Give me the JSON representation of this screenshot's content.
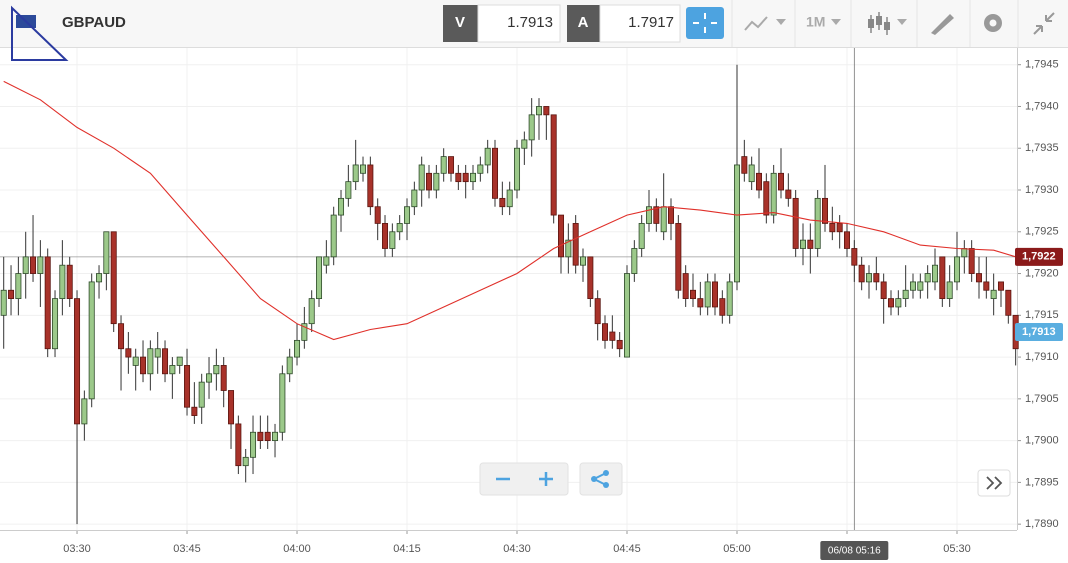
{
  "header": {
    "symbol": "GBPAUD",
    "bid_label": "V",
    "bid": "1.7913",
    "ask_label": "A",
    "ask": "1.7917",
    "timeframe": "1M"
  },
  "chart_data": {
    "type": "candlestick",
    "x": [
      "03:20",
      "03:21",
      "03:22",
      "03:23",
      "03:24",
      "03:25",
      "03:26",
      "03:27",
      "03:28",
      "03:29",
      "03:30",
      "03:31",
      "03:32",
      "03:33",
      "03:34",
      "03:35",
      "03:36",
      "03:37",
      "03:38",
      "03:39",
      "03:40",
      "03:41",
      "03:42",
      "03:43",
      "03:44",
      "03:45",
      "03:46",
      "03:47",
      "03:48",
      "03:49",
      "03:50",
      "03:51",
      "03:52",
      "03:53",
      "03:54",
      "03:55",
      "03:56",
      "03:57",
      "03:58",
      "03:59",
      "04:00",
      "04:01",
      "04:02",
      "04:03",
      "04:04",
      "04:05",
      "04:06",
      "04:07",
      "04:08",
      "04:09",
      "04:10",
      "04:11",
      "04:12",
      "04:13",
      "04:14",
      "04:15",
      "04:16",
      "04:17",
      "04:18",
      "04:19",
      "04:20",
      "04:21",
      "04:22",
      "04:23",
      "04:24",
      "04:25",
      "04:26",
      "04:27",
      "04:28",
      "04:29",
      "04:30",
      "04:31",
      "04:32",
      "04:33",
      "04:34",
      "04:35",
      "04:36",
      "04:37",
      "04:38",
      "04:39",
      "04:40",
      "04:41",
      "04:42",
      "04:43",
      "04:44",
      "04:45",
      "04:46",
      "04:47",
      "04:48",
      "04:49",
      "04:50",
      "04:51",
      "04:52",
      "04:53",
      "04:54",
      "04:55",
      "04:56",
      "04:57",
      "04:58",
      "04:59",
      "05:00",
      "05:01",
      "05:02",
      "05:03",
      "05:04",
      "05:05",
      "05:06",
      "05:07",
      "05:08",
      "05:09",
      "05:10",
      "05:11",
      "05:12",
      "05:13",
      "05:14",
      "05:15",
      "05:16",
      "05:17",
      "05:18",
      "05:19",
      "05:20",
      "05:21",
      "05:22",
      "05:23",
      "05:24",
      "05:25",
      "05:26",
      "05:27",
      "05:28",
      "05:29",
      "05:30",
      "05:31",
      "05:32",
      "05:33",
      "05:34",
      "05:35",
      "05:36",
      "05:37",
      "05:38"
    ],
    "ohlc": [
      [
        1.7915,
        1.7922,
        1.7911,
        1.7918
      ],
      [
        1.7918,
        1.7921,
        1.7915,
        1.7917
      ],
      [
        1.7917,
        1.7922,
        1.7915,
        1.792
      ],
      [
        1.792,
        1.7925,
        1.7917,
        1.7922
      ],
      [
        1.7922,
        1.7927,
        1.7919,
        1.792
      ],
      [
        1.792,
        1.7924,
        1.7916,
        1.7922
      ],
      [
        1.7922,
        1.7923,
        1.791,
        1.7911
      ],
      [
        1.7911,
        1.7918,
        1.791,
        1.7917
      ],
      [
        1.7917,
        1.7924,
        1.7915,
        1.7921
      ],
      [
        1.7921,
        1.7922,
        1.7916,
        1.7917
      ],
      [
        1.7917,
        1.7918,
        1.789,
        1.7902
      ],
      [
        1.7902,
        1.7906,
        1.79,
        1.7905
      ],
      [
        1.7905,
        1.792,
        1.7904,
        1.7919
      ],
      [
        1.7919,
        1.7921,
        1.7917,
        1.792
      ],
      [
        1.792,
        1.7925,
        1.7918,
        1.7925
      ],
      [
        1.7925,
        1.7925,
        1.7913,
        1.7914
      ],
      [
        1.7914,
        1.7915,
        1.7906,
        1.7911
      ],
      [
        1.7911,
        1.7913,
        1.7908,
        1.791
      ],
      [
        1.7909,
        1.7911,
        1.7906,
        1.791
      ],
      [
        1.791,
        1.7912,
        1.7907,
        1.7908
      ],
      [
        1.7908,
        1.7912,
        1.7906,
        1.7911
      ],
      [
        1.791,
        1.7913,
        1.7908,
        1.7911
      ],
      [
        1.7911,
        1.7912,
        1.7907,
        1.7908
      ],
      [
        1.7908,
        1.791,
        1.7905,
        1.7909
      ],
      [
        1.7909,
        1.791,
        1.7908,
        1.791
      ],
      [
        1.7909,
        1.7911,
        1.7903,
        1.7904
      ],
      [
        1.7904,
        1.7907,
        1.7902,
        1.7903
      ],
      [
        1.7904,
        1.7908,
        1.7902,
        1.7907
      ],
      [
        1.7907,
        1.791,
        1.7905,
        1.7908
      ],
      [
        1.7908,
        1.7911,
        1.7906,
        1.7909
      ],
      [
        1.7909,
        1.791,
        1.7904,
        1.7906
      ],
      [
        1.7906,
        1.7906,
        1.7899,
        1.7902
      ],
      [
        1.7902,
        1.7903,
        1.7896,
        1.7897
      ],
      [
        1.7897,
        1.7899,
        1.7895,
        1.7898
      ],
      [
        1.7898,
        1.7903,
        1.7896,
        1.7901
      ],
      [
        1.7901,
        1.7903,
        1.7899,
        1.79
      ],
      [
        1.7901,
        1.7903,
        1.7899,
        1.79
      ],
      [
        1.79,
        1.7902,
        1.7898,
        1.7901
      ],
      [
        1.7901,
        1.7909,
        1.79,
        1.7908
      ],
      [
        1.7908,
        1.7911,
        1.7907,
        1.791
      ],
      [
        1.791,
        1.7914,
        1.7909,
        1.7912
      ],
      [
        1.7912,
        1.7916,
        1.7911,
        1.7914
      ],
      [
        1.7914,
        1.7918,
        1.7913,
        1.7917
      ],
      [
        1.7917,
        1.7922,
        1.7916,
        1.7922
      ],
      [
        1.7921,
        1.7924,
        1.792,
        1.7922
      ],
      [
        1.7922,
        1.7928,
        1.7921,
        1.7927
      ],
      [
        1.7927,
        1.793,
        1.7925,
        1.7929
      ],
      [
        1.7929,
        1.7933,
        1.7928,
        1.7931
      ],
      [
        1.7931,
        1.7936,
        1.793,
        1.7933
      ],
      [
        1.7932,
        1.7934,
        1.7931,
        1.7933
      ],
      [
        1.7933,
        1.7934,
        1.7927,
        1.7928
      ],
      [
        1.7928,
        1.7929,
        1.7924,
        1.7926
      ],
      [
        1.7926,
        1.7927,
        1.7922,
        1.7923
      ],
      [
        1.7923,
        1.7926,
        1.7922,
        1.7925
      ],
      [
        1.7925,
        1.7927,
        1.7924,
        1.7926
      ],
      [
        1.7926,
        1.7929,
        1.7924,
        1.7928
      ],
      [
        1.7928,
        1.7931,
        1.7927,
        1.793
      ],
      [
        1.793,
        1.7934,
        1.7928,
        1.7933
      ],
      [
        1.7932,
        1.7933,
        1.7929,
        1.793
      ],
      [
        1.793,
        1.7933,
        1.7929,
        1.7932
      ],
      [
        1.7932,
        1.7935,
        1.7931,
        1.7934
      ],
      [
        1.7934,
        1.7934,
        1.7931,
        1.7932
      ],
      [
        1.7932,
        1.7933,
        1.793,
        1.7931
      ],
      [
        1.7932,
        1.7933,
        1.7929,
        1.7931
      ],
      [
        1.7931,
        1.7933,
        1.793,
        1.7932
      ],
      [
        1.7932,
        1.7934,
        1.7931,
        1.7933
      ],
      [
        1.7933,
        1.7936,
        1.7932,
        1.7935
      ],
      [
        1.7935,
        1.7936,
        1.7928,
        1.7929
      ],
      [
        1.7929,
        1.7931,
        1.7927,
        1.7928
      ],
      [
        1.7928,
        1.7931,
        1.7927,
        1.793
      ],
      [
        1.793,
        1.7936,
        1.7929,
        1.7935
      ],
      [
        1.7935,
        1.7937,
        1.7933,
        1.7936
      ],
      [
        1.7936,
        1.7941,
        1.7934,
        1.7939
      ],
      [
        1.7939,
        1.7941,
        1.7936,
        1.794
      ],
      [
        1.794,
        1.794,
        1.7936,
        1.7939
      ],
      [
        1.7939,
        1.7939,
        1.7926,
        1.7927
      ],
      [
        1.7927,
        1.7927,
        1.792,
        1.7922
      ],
      [
        1.7922,
        1.7926,
        1.792,
        1.7924
      ],
      [
        1.7926,
        1.7927,
        1.792,
        1.7921
      ],
      [
        1.7921,
        1.7923,
        1.7919,
        1.7922
      ],
      [
        1.7922,
        1.7922,
        1.7916,
        1.7917
      ],
      [
        1.7917,
        1.7918,
        1.7912,
        1.7914
      ],
      [
        1.7914,
        1.7915,
        1.7911,
        1.7912
      ],
      [
        1.7913,
        1.7915,
        1.7911,
        1.7912
      ],
      [
        1.7912,
        1.7913,
        1.791,
        1.7911
      ],
      [
        1.791,
        1.7921,
        1.791,
        1.792
      ],
      [
        1.792,
        1.7924,
        1.7919,
        1.7923
      ],
      [
        1.7923,
        1.7927,
        1.7922,
        1.7926
      ],
      [
        1.7926,
        1.793,
        1.7925,
        1.7928
      ],
      [
        1.7928,
        1.7929,
        1.7925,
        1.7926
      ],
      [
        1.7925,
        1.7932,
        1.7924,
        1.7928
      ],
      [
        1.7928,
        1.7929,
        1.7924,
        1.7926
      ],
      [
        1.7926,
        1.7927,
        1.7917,
        1.7918
      ],
      [
        1.792,
        1.7921,
        1.7916,
        1.7917
      ],
      [
        1.7918,
        1.792,
        1.7916,
        1.7917
      ],
      [
        1.7917,
        1.7919,
        1.7915,
        1.7916
      ],
      [
        1.7916,
        1.792,
        1.7915,
        1.7919
      ],
      [
        1.7919,
        1.792,
        1.7915,
        1.7916
      ],
      [
        1.7917,
        1.7918,
        1.7914,
        1.7915
      ],
      [
        1.7915,
        1.792,
        1.7914,
        1.7919
      ],
      [
        1.7919,
        1.7945,
        1.7918,
        1.7933
      ],
      [
        1.7934,
        1.7936,
        1.7931,
        1.7932
      ],
      [
        1.7931,
        1.7934,
        1.793,
        1.7933
      ],
      [
        1.7932,
        1.7935,
        1.7929,
        1.793
      ],
      [
        1.7931,
        1.7932,
        1.7926,
        1.7927
      ],
      [
        1.7927,
        1.7933,
        1.7926,
        1.7932
      ],
      [
        1.7932,
        1.7935,
        1.7929,
        1.793
      ],
      [
        1.793,
        1.7932,
        1.7928,
        1.7929
      ],
      [
        1.7929,
        1.793,
        1.7922,
        1.7923
      ],
      [
        1.7923,
        1.7926,
        1.7921,
        1.7924
      ],
      [
        1.7924,
        1.7926,
        1.792,
        1.7923
      ],
      [
        1.7923,
        1.793,
        1.7922,
        1.7929
      ],
      [
        1.7929,
        1.7933,
        1.7925,
        1.7926
      ],
      [
        1.7926,
        1.7928,
        1.7924,
        1.7925
      ],
      [
        1.7926,
        1.7927,
        1.7923,
        1.7925
      ],
      [
        1.7925,
        1.7926,
        1.7922,
        1.7923
      ],
      [
        1.7923,
        1.7924,
        1.7919,
        1.7921
      ],
      [
        1.7921,
        1.7922,
        1.7918,
        1.7919
      ],
      [
        1.7919,
        1.7921,
        1.7917,
        1.792
      ],
      [
        1.792,
        1.7922,
        1.7918,
        1.7919
      ],
      [
        1.7919,
        1.792,
        1.7914,
        1.7917
      ],
      [
        1.7917,
        1.7918,
        1.7915,
        1.7916
      ],
      [
        1.7916,
        1.7918,
        1.7915,
        1.7917
      ],
      [
        1.7917,
        1.7921,
        1.7916,
        1.7918
      ],
      [
        1.7918,
        1.792,
        1.7917,
        1.7919
      ],
      [
        1.7918,
        1.792,
        1.7917,
        1.7919
      ],
      [
        1.7919,
        1.7921,
        1.7917,
        1.792
      ],
      [
        1.7919,
        1.7923,
        1.7918,
        1.7921
      ],
      [
        1.7922,
        1.7922,
        1.7916,
        1.7917
      ],
      [
        1.7917,
        1.7921,
        1.7916,
        1.7919
      ],
      [
        1.7919,
        1.7925,
        1.7918,
        1.7922
      ],
      [
        1.7922,
        1.7924,
        1.792,
        1.7923
      ],
      [
        1.7923,
        1.7924,
        1.7919,
        1.792
      ],
      [
        1.792,
        1.7922,
        1.7917,
        1.7919
      ],
      [
        1.7919,
        1.7922,
        1.7917,
        1.7918
      ],
      [
        1.7917,
        1.792,
        1.7915,
        1.7918
      ],
      [
        1.7919,
        1.7919,
        1.7916,
        1.7918
      ],
      [
        1.7918,
        1.7918,
        1.7914,
        1.7915
      ],
      [
        1.7915,
        1.7915,
        1.7909,
        1.7911
      ]
    ],
    "up_color": "#9cc98a",
    "down_color": "#a8322a",
    "ma": {
      "color": "#e0302a",
      "x": [
        "03:20",
        "03:25",
        "03:30",
        "03:35",
        "03:40",
        "03:45",
        "03:50",
        "03:55",
        "04:00",
        "04:05",
        "04:10",
        "04:15",
        "04:20",
        "04:25",
        "04:30",
        "04:35",
        "04:40",
        "04:45",
        "04:50",
        "04:55",
        "05:00",
        "05:05",
        "05:10",
        "05:15",
        "05:20",
        "05:25",
        "05:30",
        "05:35",
        "05:38"
      ],
      "values": [
        1.7943,
        1.79408,
        1.79375,
        1.7935,
        1.7932,
        1.7927,
        1.7922,
        1.7917,
        1.7914,
        1.79121,
        1.79133,
        1.7914,
        1.7916,
        1.7918,
        1.792,
        1.7923,
        1.7925,
        1.7927,
        1.7928,
        1.79276,
        1.7927,
        1.79273,
        1.79264,
        1.7926,
        1.7925,
        1.79234,
        1.7923,
        1.79228,
        1.7922
      ]
    },
    "ylim": [
      1.78893,
      1.7947
    ],
    "yticks": [
      {
        "value": 1.789,
        "label": "1,7890"
      },
      {
        "value": 1.7895,
        "label": "1,7895"
      },
      {
        "value": 1.79,
        "label": "1,7900"
      },
      {
        "value": 1.7905,
        "label": "1,7905"
      },
      {
        "value": 1.791,
        "label": "1,7910"
      },
      {
        "value": 1.7915,
        "label": "1,7915"
      },
      {
        "value": 1.792,
        "label": "1,7920"
      },
      {
        "value": 1.7925,
        "label": "1,7925"
      },
      {
        "value": 1.793,
        "label": "1,7930"
      },
      {
        "value": 1.7935,
        "label": "1,7935"
      },
      {
        "value": 1.794,
        "label": "1,7940"
      },
      {
        "value": 1.7945,
        "label": "1,7945"
      }
    ],
    "xticks": [
      "03:30",
      "03:45",
      "04:00",
      "04:15",
      "04:30",
      "04:45",
      "05:00",
      "05:15",
      "05:30"
    ],
    "grid": true,
    "price_line": {
      "value": 1.7922,
      "label": "1,7922",
      "color": "#8b1a1a"
    },
    "last_price": {
      "value": 1.7913,
      "label": "1,7913",
      "color": "#5aaee0"
    },
    "crosshair": {
      "x": "05:16",
      "label": "06/08 05:16"
    }
  }
}
